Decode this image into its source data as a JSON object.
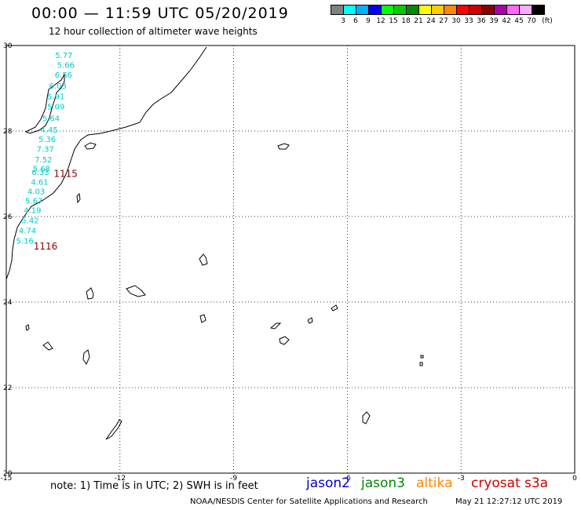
{
  "header": {
    "title": "00:00 — 11:59 UTC 05/20/2019",
    "subtitle": "12 hour collection of altimeter wave heights"
  },
  "legend": {
    "colors": [
      "#808080",
      "#00ffff",
      "#00b0ff",
      "#0000ff",
      "#00ff00",
      "#00cc00",
      "#008800",
      "#ffff00",
      "#ffcc00",
      "#ff8800",
      "#ff0000",
      "#cc0000",
      "#880000",
      "#aa00aa",
      "#ff66ff",
      "#ffaaff",
      "#000000"
    ],
    "labels": [
      "3",
      "6",
      "9",
      "12",
      "15",
      "18",
      "21",
      "24",
      "27",
      "30",
      "33",
      "36",
      "39",
      "42",
      "45",
      "70",
      "(ft)"
    ]
  },
  "map": {
    "lat_labels": [
      "30",
      "28",
      "26",
      "24",
      "22",
      "20"
    ],
    "lon_labels": [
      "-15",
      "-12",
      "-9",
      "-6",
      "-3",
      "0"
    ],
    "pass_labels": [
      {
        "text": "1115",
        "lon": -13.75,
        "lat": 27.0,
        "color": "#880000"
      },
      {
        "text": "1116",
        "lon": -14.28,
        "lat": 25.3,
        "color": "#880000"
      }
    ],
    "measurements": [
      {
        "value": "5.77",
        "lon": -13.71,
        "lat": 29.78
      },
      {
        "value": "5.66",
        "lon": -13.66,
        "lat": 29.55
      },
      {
        "value": "6.56",
        "lon": -13.72,
        "lat": 29.32
      },
      {
        "value": "6.03",
        "lon": -13.87,
        "lat": 29.06
      },
      {
        "value": "5.91",
        "lon": -13.92,
        "lat": 28.82
      },
      {
        "value": "5.09",
        "lon": -13.92,
        "lat": 28.58
      },
      {
        "value": "5.64",
        "lon": -14.05,
        "lat": 28.3
      },
      {
        "value": "4.45",
        "lon": -14.1,
        "lat": 28.04
      },
      {
        "value": "5.36",
        "lon": -14.15,
        "lat": 27.82
      },
      {
        "value": "7.37",
        "lon": -14.2,
        "lat": 27.59
      },
      {
        "value": "7.52",
        "lon": -14.25,
        "lat": 27.34
      },
      {
        "value": "5.68",
        "lon": -14.3,
        "lat": 27.13
      },
      {
        "value": "6.33",
        "lon": -14.33,
        "lat": 27.05
      },
      {
        "value": "4.61",
        "lon": -14.35,
        "lat": 26.82
      },
      {
        "value": "4.03",
        "lon": -14.44,
        "lat": 26.6
      },
      {
        "value": "5.67",
        "lon": -14.5,
        "lat": 26.38
      },
      {
        "value": "4.19",
        "lon": -14.54,
        "lat": 26.16
      },
      {
        "value": "5.42",
        "lon": -14.6,
        "lat": 25.92
      },
      {
        "value": "4.74",
        "lon": -14.67,
        "lat": 25.68
      },
      {
        "value": "5.16",
        "lon": -14.74,
        "lat": 25.44
      }
    ]
  },
  "footer": {
    "note": "note: 1) Time is in UTC; 2) SWH is in feet",
    "satellites": [
      {
        "name": "jason2",
        "color": "#0000cc"
      },
      {
        "name": "jason3",
        "color": "#008800"
      },
      {
        "name": "altika",
        "color": "#ff8800"
      },
      {
        "name": "cryosat",
        "color": "#cc0000"
      },
      {
        "name": "s3a",
        "color": "#cc0000"
      }
    ],
    "credit": "NOAA/NESDIS Center for Satellite Applications and Research",
    "timestamp": "May 21 12:27:12 UTC 2019"
  }
}
